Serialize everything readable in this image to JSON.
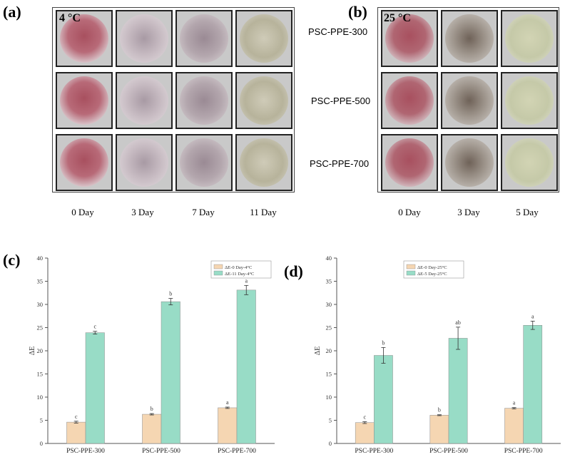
{
  "panel_a": {
    "label": "(a)",
    "temperature": "4 °C",
    "samples": [
      "PSC-PPE-300",
      "PSC-PPE-500",
      "PSC-PPE-700"
    ],
    "days": [
      "0 Day",
      "3 Day",
      "7 Day",
      "11 Day"
    ]
  },
  "panel_b": {
    "label": "(b)",
    "temperature": "25 °C",
    "days": [
      "0 Day",
      "3 Day",
      "5 Day"
    ]
  },
  "colors": {
    "series1": "#f5d6b2",
    "series2": "#98dcc6",
    "dish_fresh": "#a8505f",
    "dish_mid": "#9a8a94",
    "dish_late": "#b7b39b"
  },
  "chart_data": [
    {
      "panel": "(c)",
      "type": "bar",
      "categories": [
        "PSC-PPE-300",
        "PSC-PPE-500",
        "PSC-PPE-700"
      ],
      "series": [
        {
          "name": "ΔE-0 Day-4°C",
          "values": [
            4.6,
            6.3,
            7.7
          ],
          "errors": [
            0.2,
            0.15,
            0.15
          ],
          "letters": [
            "c",
            "b",
            "a"
          ]
        },
        {
          "name": "ΔE-11 Day-4°C",
          "values": [
            23.9,
            30.6,
            33.1
          ],
          "errors": [
            0.3,
            0.7,
            1.0
          ],
          "letters": [
            "c",
            "b",
            "a"
          ]
        }
      ],
      "ylabel": "ΔE",
      "ylim": [
        0,
        40
      ],
      "yticks": [
        0,
        5,
        10,
        15,
        20,
        25,
        30,
        35,
        40
      ],
      "legend": "top-right"
    },
    {
      "panel": "(d)",
      "type": "bar",
      "categories": [
        "PSC-PPE-300",
        "PSC-PPE-500",
        "PSC-PPE-700"
      ],
      "series": [
        {
          "name": "ΔE-0 Day-25°C",
          "values": [
            4.5,
            6.1,
            7.6
          ],
          "errors": [
            0.2,
            0.1,
            0.15
          ],
          "letters": [
            "c",
            "b",
            "a"
          ]
        },
        {
          "name": "ΔE-5 Day-25°C",
          "values": [
            19.0,
            22.7,
            25.5
          ],
          "errors": [
            1.7,
            2.4,
            0.9
          ],
          "letters": [
            "b",
            "ab",
            "a"
          ]
        }
      ],
      "ylabel": "ΔE",
      "ylim": [
        0,
        40
      ],
      "yticks": [
        0,
        5,
        10,
        15,
        20,
        25,
        30,
        35,
        40
      ],
      "legend": "top-left"
    }
  ]
}
